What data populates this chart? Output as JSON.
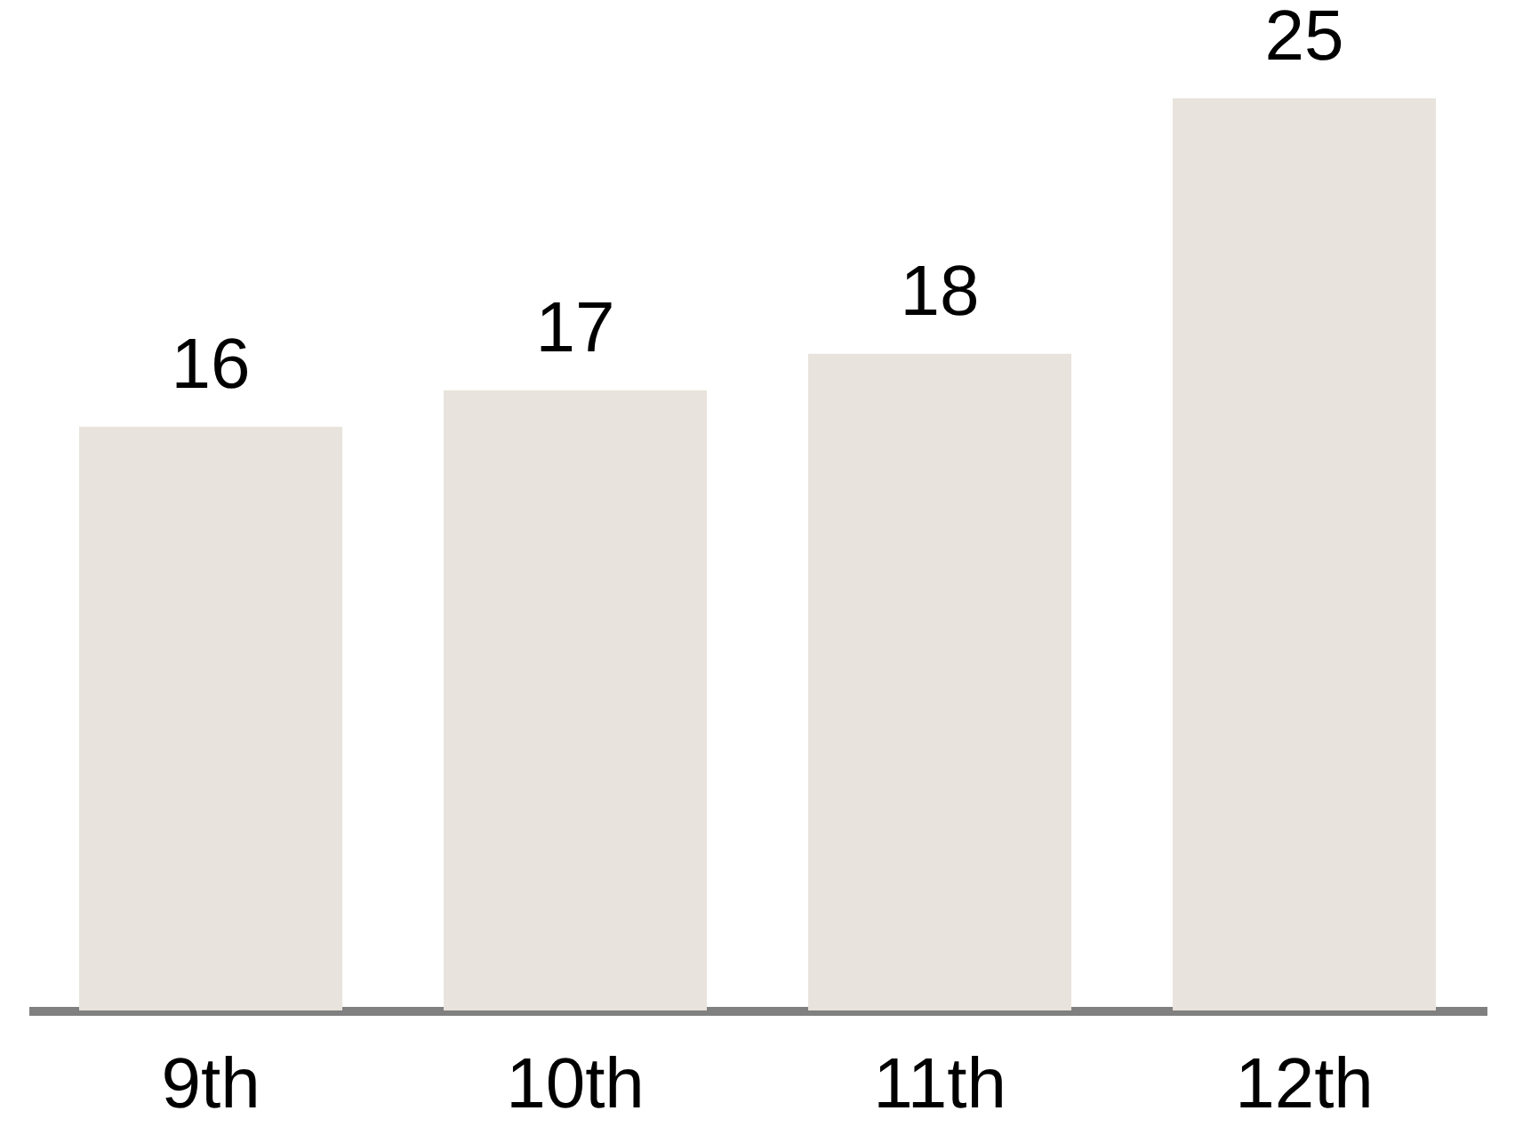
{
  "chart_data": {
    "type": "bar",
    "categories": [
      "9th",
      "10th",
      "11th",
      "12th"
    ],
    "values": [
      16,
      17,
      18,
      25
    ],
    "color": "#e8e3dc",
    "data_labels": true
  }
}
